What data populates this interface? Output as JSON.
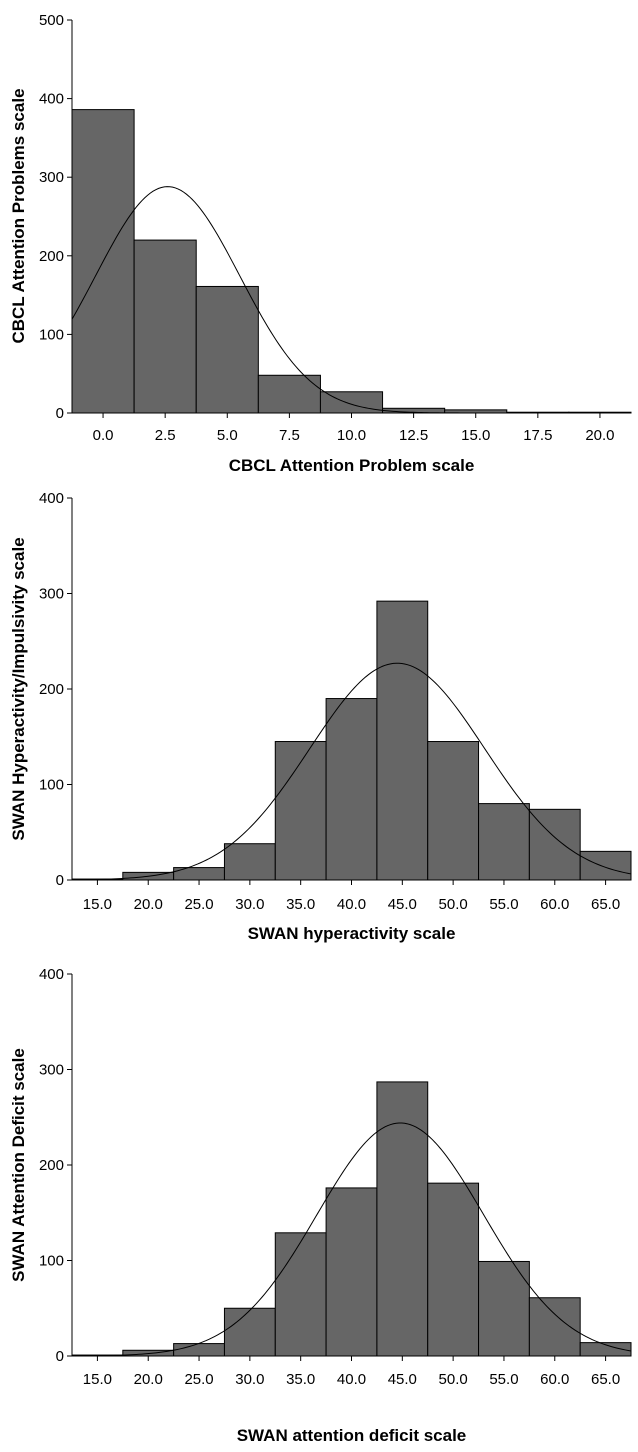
{
  "chart_data": [
    {
      "type": "bar",
      "xlabel": "CBCL Attention Problem scale",
      "ylabel": "CBCL Attention Problems scale",
      "ylim": [
        0,
        500
      ],
      "yticks": [
        0,
        100,
        200,
        300,
        400,
        500
      ],
      "xlim": [
        -1.25,
        21.25
      ],
      "xticks": [
        "0.0",
        "2.5",
        "5.0",
        "7.5",
        "10.0",
        "12.5",
        "15.0",
        "17.5",
        "20.0"
      ],
      "bin_width": 2.5,
      "bins": [
        {
          "x": 0.0,
          "value": 386
        },
        {
          "x": 2.5,
          "value": 220
        },
        {
          "x": 5.0,
          "value": 161
        },
        {
          "x": 7.5,
          "value": 48
        },
        {
          "x": 10.0,
          "value": 27
        },
        {
          "x": 12.5,
          "value": 6
        },
        {
          "x": 15.0,
          "value": 4
        },
        {
          "x": 17.5,
          "value": 1
        },
        {
          "x": 20.0,
          "value": 1
        }
      ],
      "normal_curve": {
        "mean": 2.6,
        "sd": 2.9,
        "peak": 288
      },
      "grid": false
    },
    {
      "type": "bar",
      "xlabel": "SWAN hyperactivity scale",
      "ylabel": "SWAN Hyperactivity/Impulsivity scale",
      "ylim": [
        0,
        400
      ],
      "yticks": [
        0,
        100,
        200,
        300,
        400
      ],
      "xlim": [
        12.5,
        67.5
      ],
      "xticks": [
        "15.0",
        "20.0",
        "25.0",
        "30.0",
        "35.0",
        "40.0",
        "45.0",
        "50.0",
        "55.0",
        "60.0",
        "65.0"
      ],
      "bin_width": 5,
      "bins": [
        {
          "x": 15.0,
          "value": 1
        },
        {
          "x": 20.0,
          "value": 8
        },
        {
          "x": 25.0,
          "value": 13
        },
        {
          "x": 30.0,
          "value": 38
        },
        {
          "x": 35.0,
          "value": 145
        },
        {
          "x": 40.0,
          "value": 190
        },
        {
          "x": 45.0,
          "value": 292
        },
        {
          "x": 50.0,
          "value": 145
        },
        {
          "x": 55.0,
          "value": 80
        },
        {
          "x": 60.0,
          "value": 74
        },
        {
          "x": 65.0,
          "value": 30
        }
      ],
      "normal_curve": {
        "mean": 44.5,
        "sd": 8.6,
        "peak": 227
      },
      "grid": false
    },
    {
      "type": "bar",
      "xlabel": "SWAN attention deficit scale",
      "ylabel": "SWAN Attention Deficit scale",
      "ylim": [
        0,
        400
      ],
      "yticks": [
        0,
        100,
        200,
        300,
        400
      ],
      "xlim": [
        12.5,
        67.5
      ],
      "xticks": [
        "15.0",
        "20.0",
        "25.0",
        "30.0",
        "35.0",
        "40.0",
        "45.0",
        "50.0",
        "55.0",
        "60.0",
        "65.0"
      ],
      "bin_width": 5,
      "bins": [
        {
          "x": 15.0,
          "value": 1
        },
        {
          "x": 20.0,
          "value": 6
        },
        {
          "x": 25.0,
          "value": 13
        },
        {
          "x": 30.0,
          "value": 50
        },
        {
          "x": 35.0,
          "value": 129
        },
        {
          "x": 40.0,
          "value": 176
        },
        {
          "x": 45.0,
          "value": 287
        },
        {
          "x": 50.0,
          "value": 181
        },
        {
          "x": 55.0,
          "value": 99
        },
        {
          "x": 60.0,
          "value": 61
        },
        {
          "x": 65.0,
          "value": 14
        }
      ],
      "normal_curve": {
        "mean": 44.8,
        "sd": 8.2,
        "peak": 244
      },
      "grid": false
    }
  ],
  "colors": {
    "bar_fill": "#666666",
    "bar_stroke": "#000000",
    "curve": "#000000",
    "axis": "#000000",
    "background": "#ffffff"
  }
}
